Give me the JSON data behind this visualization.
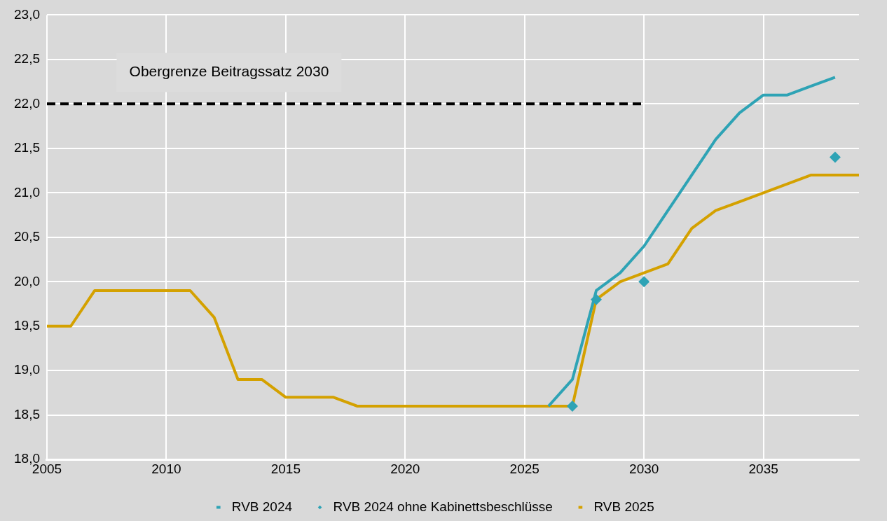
{
  "chart_data": {
    "type": "line",
    "xlim": [
      2005,
      2039
    ],
    "xticks": [
      2005,
      2010,
      2015,
      2020,
      2025,
      2030,
      2035
    ],
    "ylim": [
      18,
      23
    ],
    "yticks": [
      {
        "value": 18,
        "label": "18,0"
      },
      {
        "value": 18.5,
        "label": "18,5"
      },
      {
        "value": 19,
        "label": "19,0"
      },
      {
        "value": 19.5,
        "label": "19,5"
      },
      {
        "value": 20,
        "label": "20,0"
      },
      {
        "value": 20.5,
        "label": "20,5"
      },
      {
        "value": 21,
        "label": "21,0"
      },
      {
        "value": 21.5,
        "label": "21,5"
      },
      {
        "value": 22,
        "label": "22,0"
      },
      {
        "value": 22.5,
        "label": "22,5"
      },
      {
        "value": 23,
        "label": "23,0"
      }
    ],
    "grid": true,
    "legend": "bottom",
    "series": [
      {
        "name": "RVB 2024",
        "color": "#2ea3b5",
        "marker": "none",
        "x": [
          2026,
          2027,
          2028,
          2029,
          2030,
          2031,
          2032,
          2033,
          2034,
          2035,
          2036,
          2037,
          2038
        ],
        "values": [
          18.6,
          18.9,
          19.9,
          20.1,
          20.4,
          20.8,
          21.2,
          21.6,
          21.9,
          22.1,
          22.1,
          22.2,
          22.3
        ]
      },
      {
        "name": "RVB 2024 ohne Kabinettsbeschlüsse",
        "type": "scatter",
        "color": "#2ea3b5",
        "marker": "diamond",
        "x": [
          2027,
          2028,
          2030,
          2038
        ],
        "values": [
          18.6,
          19.8,
          20.0,
          21.4
        ]
      },
      {
        "name": "RVB 2025",
        "color": "#d4a100",
        "marker": "none",
        "x": [
          2005,
          2006,
          2007,
          2008,
          2009,
          2010,
          2011,
          2012,
          2013,
          2014,
          2015,
          2016,
          2017,
          2018,
          2019,
          2020,
          2021,
          2022,
          2023,
          2024,
          2025,
          2026,
          2027,
          2028,
          2029,
          2030,
          2031,
          2032,
          2033,
          2034,
          2035,
          2036,
          2037,
          2038,
          2039
        ],
        "values": [
          19.5,
          19.5,
          19.9,
          19.9,
          19.9,
          19.9,
          19.9,
          19.6,
          18.9,
          18.9,
          18.7,
          18.7,
          18.7,
          18.6,
          18.6,
          18.6,
          18.6,
          18.6,
          18.6,
          18.6,
          18.6,
          18.6,
          18.6,
          19.8,
          20.0,
          20.1,
          20.2,
          20.6,
          20.8,
          20.9,
          21.0,
          21.1,
          21.2,
          21.2,
          21.2
        ]
      },
      {
        "color": "#000000",
        "marker": "none",
        "line_style": "dashed",
        "x": [
          2005,
          2030
        ],
        "values": [
          22,
          22
        ]
      }
    ],
    "annotations": [
      "Obergrenze Beitragssatz 2030"
    ]
  }
}
